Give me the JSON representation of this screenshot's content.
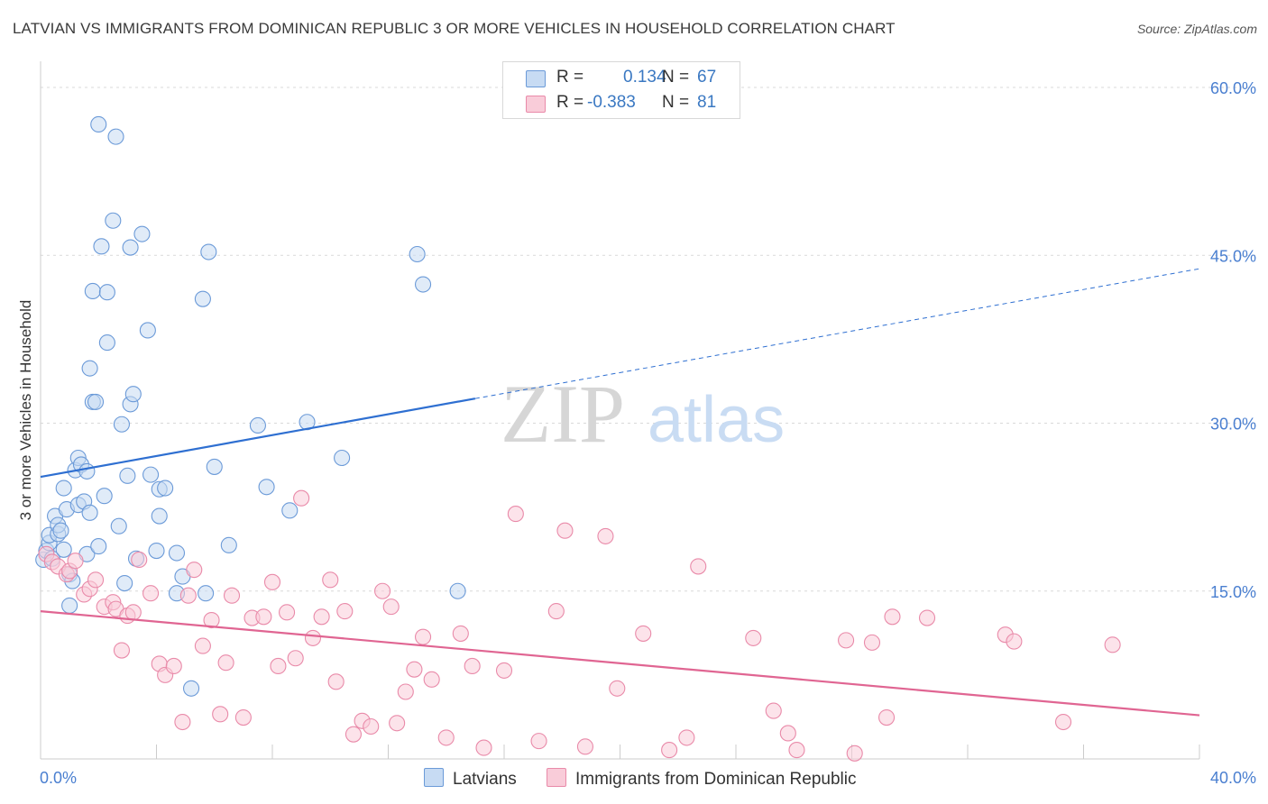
{
  "title": "LATVIAN VS IMMIGRANTS FROM DOMINICAN REPUBLIC 3 OR MORE VEHICLES IN HOUSEHOLD CORRELATION CHART",
  "source": "Source: ZipAtlas.com",
  "watermark": {
    "zip": "ZIP",
    "atlas": "atlas"
  },
  "colors": {
    "blue": "#6b9ad8",
    "blue_fill": "#c7dbf3",
    "blue_line": "#2e6fd1",
    "pink": "#e98aa9",
    "pink_fill": "#f9ccd9",
    "pink_line": "#e06592",
    "axis_text": "#4a7fd0",
    "grid": "#d9d9d9"
  },
  "legend": {
    "series1": {
      "r_label": "R =",
      "r_value": "0.134",
      "n_label": "N =",
      "n_value": "67"
    },
    "series2": {
      "r_label": "R =",
      "r_value": "-0.383",
      "n_label": "N =",
      "n_value": "81"
    }
  },
  "bottom_legend": {
    "series1": "Latvians",
    "series2": "Immigrants from Dominican Republic"
  },
  "chart_data": {
    "type": "scatter",
    "title": "LATVIAN VS IMMIGRANTS FROM DOMINICAN REPUBLIC 3 OR MORE VEHICLES IN HOUSEHOLD CORRELATION CHART",
    "xlabel": "",
    "ylabel": "3 or more Vehicles in Household",
    "xlim": [
      0,
      40
    ],
    "ylim": [
      0,
      60
    ],
    "x_tick_labels": [
      {
        "value": 0,
        "label": "0.0%"
      },
      {
        "value": 40,
        "label": "40.0%"
      }
    ],
    "y_tick_labels": [
      {
        "value": 15,
        "label": "15.0%"
      },
      {
        "value": 30,
        "label": "30.0%"
      },
      {
        "value": 45,
        "label": "45.0%"
      },
      {
        "value": 60,
        "label": "60.0%"
      }
    ],
    "x_minor_ticks": [
      4,
      8,
      12,
      16,
      20,
      24,
      28,
      32,
      36,
      40
    ],
    "y_gridlines": [
      15,
      30,
      45,
      60
    ],
    "series": [
      {
        "name": "Latvians",
        "r": 0.134,
        "n": 67,
        "trend": {
          "x": [
            0,
            15
          ],
          "y": [
            25.2,
            32.2
          ]
        },
        "trend_extension": {
          "x": [
            15,
            40
          ],
          "y": [
            32.2,
            43.8
          ]
        },
        "points": [
          [
            0.1,
            17.8
          ],
          [
            0.2,
            18.6
          ],
          [
            0.3,
            19.3
          ],
          [
            0.3,
            20.0
          ],
          [
            0.4,
            17.9
          ],
          [
            0.5,
            21.7
          ],
          [
            0.6,
            20.1
          ],
          [
            0.6,
            20.9
          ],
          [
            0.7,
            20.4
          ],
          [
            0.8,
            18.7
          ],
          [
            0.8,
            24.2
          ],
          [
            0.9,
            22.3
          ],
          [
            1.0,
            16.5
          ],
          [
            1.0,
            13.7
          ],
          [
            1.1,
            15.9
          ],
          [
            1.2,
            25.8
          ],
          [
            1.3,
            22.7
          ],
          [
            1.3,
            26.9
          ],
          [
            1.4,
            26.3
          ],
          [
            1.5,
            23.0
          ],
          [
            1.6,
            18.3
          ],
          [
            1.6,
            25.7
          ],
          [
            1.7,
            22.0
          ],
          [
            1.7,
            34.9
          ],
          [
            1.8,
            41.8
          ],
          [
            1.8,
            31.9
          ],
          [
            1.9,
            31.9
          ],
          [
            2.0,
            19.0
          ],
          [
            2.1,
            45.8
          ],
          [
            2.2,
            23.5
          ],
          [
            2.3,
            41.7
          ],
          [
            2.3,
            37.2
          ],
          [
            2.0,
            56.7
          ],
          [
            2.5,
            48.1
          ],
          [
            2.6,
            55.6
          ],
          [
            2.7,
            20.8
          ],
          [
            2.8,
            29.9
          ],
          [
            2.9,
            15.7
          ],
          [
            3.0,
            25.3
          ],
          [
            3.1,
            45.7
          ],
          [
            3.1,
            31.7
          ],
          [
            3.2,
            32.6
          ],
          [
            3.3,
            17.9
          ],
          [
            3.5,
            46.9
          ],
          [
            3.7,
            38.3
          ],
          [
            3.8,
            25.4
          ],
          [
            4.0,
            18.6
          ],
          [
            4.1,
            21.7
          ],
          [
            4.1,
            24.1
          ],
          [
            4.3,
            24.2
          ],
          [
            4.7,
            18.4
          ],
          [
            4.9,
            16.3
          ],
          [
            5.2,
            6.3
          ],
          [
            5.6,
            41.1
          ],
          [
            5.7,
            14.8
          ],
          [
            5.8,
            45.3
          ],
          [
            6.0,
            26.1
          ],
          [
            6.5,
            19.1
          ],
          [
            7.5,
            29.8
          ],
          [
            7.8,
            24.3
          ],
          [
            8.6,
            22.2
          ],
          [
            9.2,
            30.1
          ],
          [
            10.4,
            26.9
          ],
          [
            13.0,
            45.1
          ],
          [
            13.2,
            42.4
          ],
          [
            14.4,
            15.0
          ],
          [
            4.7,
            14.8
          ]
        ]
      },
      {
        "name": "Immigrants from Dominican Republic",
        "r": -0.383,
        "n": 81,
        "trend": {
          "x": [
            0,
            40
          ],
          "y": [
            13.2,
            3.9
          ]
        },
        "points": [
          [
            0.2,
            18.3
          ],
          [
            0.4,
            17.6
          ],
          [
            0.6,
            17.2
          ],
          [
            0.9,
            16.5
          ],
          [
            1.0,
            16.8
          ],
          [
            1.2,
            17.7
          ],
          [
            1.5,
            14.7
          ],
          [
            1.7,
            15.2
          ],
          [
            1.9,
            16.0
          ],
          [
            2.2,
            13.6
          ],
          [
            2.5,
            14.0
          ],
          [
            2.6,
            13.4
          ],
          [
            2.8,
            9.7
          ],
          [
            3.0,
            12.8
          ],
          [
            3.2,
            13.1
          ],
          [
            3.4,
            17.8
          ],
          [
            3.8,
            14.8
          ],
          [
            4.1,
            8.5
          ],
          [
            4.3,
            7.5
          ],
          [
            4.6,
            8.3
          ],
          [
            4.9,
            3.3
          ],
          [
            5.1,
            14.6
          ],
          [
            5.3,
            16.9
          ],
          [
            5.6,
            10.1
          ],
          [
            5.9,
            12.4
          ],
          [
            6.2,
            4.0
          ],
          [
            6.4,
            8.6
          ],
          [
            6.6,
            14.6
          ],
          [
            7.0,
            3.7
          ],
          [
            7.3,
            12.6
          ],
          [
            7.7,
            12.7
          ],
          [
            8.0,
            15.8
          ],
          [
            8.2,
            8.3
          ],
          [
            8.5,
            13.1
          ],
          [
            8.8,
            9.0
          ],
          [
            9.0,
            23.3
          ],
          [
            9.4,
            10.8
          ],
          [
            9.7,
            12.7
          ],
          [
            10.0,
            16.0
          ],
          [
            10.2,
            6.9
          ],
          [
            10.5,
            13.2
          ],
          [
            10.8,
            2.2
          ],
          [
            11.1,
            3.4
          ],
          [
            11.4,
            2.9
          ],
          [
            11.8,
            15.0
          ],
          [
            12.1,
            13.6
          ],
          [
            12.3,
            3.2
          ],
          [
            12.6,
            6.0
          ],
          [
            12.9,
            8.0
          ],
          [
            13.2,
            10.9
          ],
          [
            13.5,
            7.1
          ],
          [
            14.0,
            1.9
          ],
          [
            14.5,
            11.2
          ],
          [
            14.9,
            8.3
          ],
          [
            15.3,
            1.0
          ],
          [
            16.0,
            7.9
          ],
          [
            16.4,
            21.9
          ],
          [
            17.2,
            1.6
          ],
          [
            17.8,
            13.2
          ],
          [
            18.1,
            20.4
          ],
          [
            18.8,
            1.1
          ],
          [
            19.5,
            19.9
          ],
          [
            19.9,
            6.3
          ],
          [
            20.8,
            11.2
          ],
          [
            21.7,
            0.8
          ],
          [
            22.3,
            1.9
          ],
          [
            22.7,
            17.2
          ],
          [
            24.6,
            10.8
          ],
          [
            25.3,
            4.3
          ],
          [
            25.8,
            2.3
          ],
          [
            26.1,
            0.8
          ],
          [
            27.8,
            10.6
          ],
          [
            28.1,
            0.5
          ],
          [
            28.7,
            10.4
          ],
          [
            29.2,
            3.7
          ],
          [
            29.4,
            12.7
          ],
          [
            30.6,
            12.6
          ],
          [
            33.3,
            11.1
          ],
          [
            33.6,
            10.5
          ],
          [
            35.3,
            3.3
          ],
          [
            37.0,
            10.2
          ]
        ]
      }
    ]
  }
}
